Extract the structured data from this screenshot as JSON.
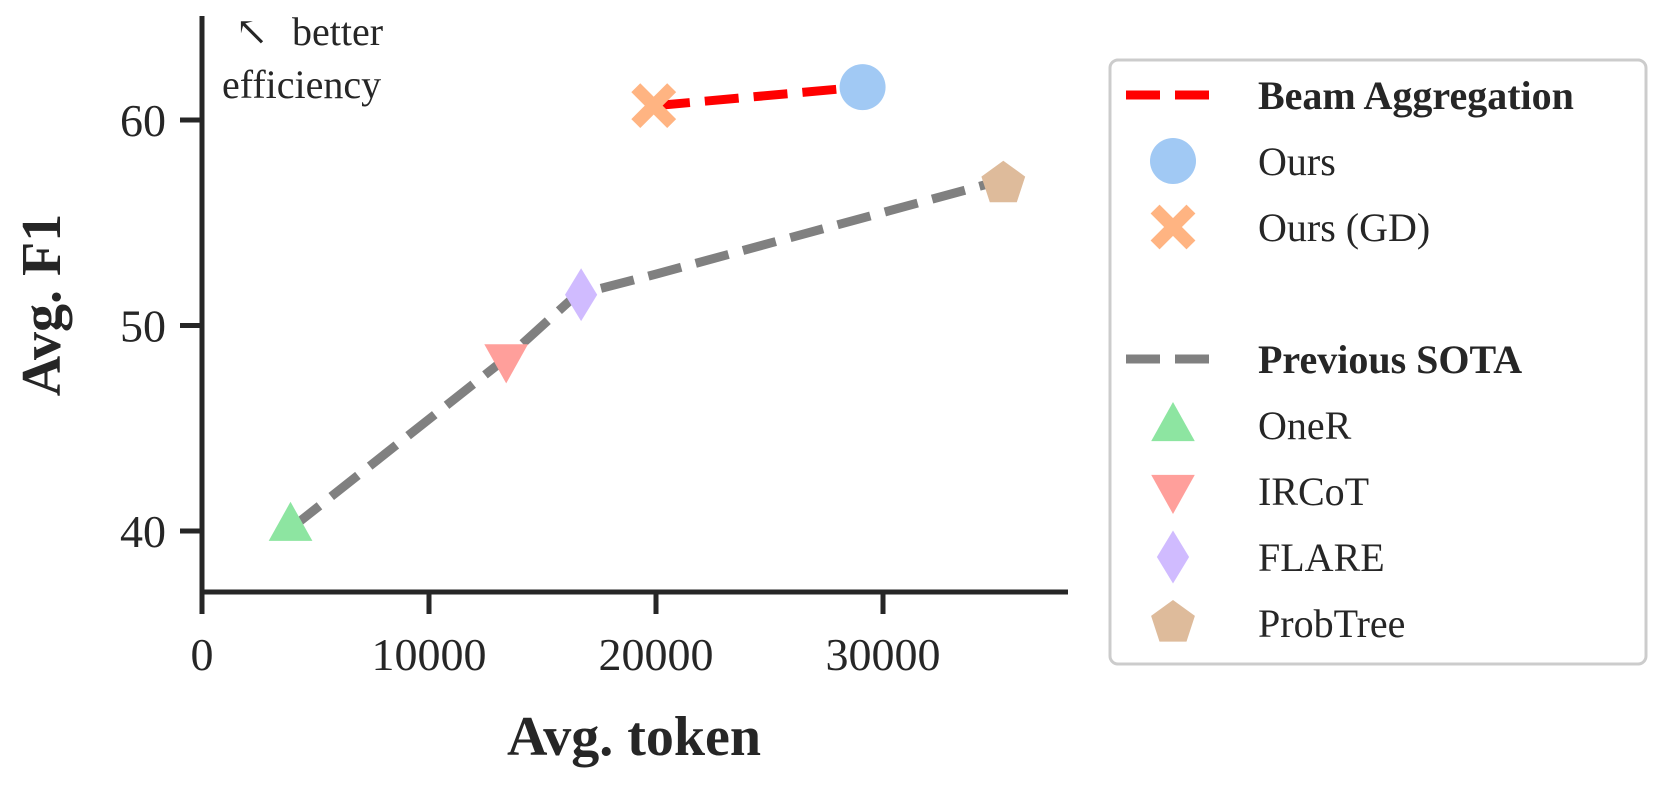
{
  "chart_data": {
    "type": "scatter",
    "title": "",
    "xlabel": "Avg. token",
    "ylabel": "Avg. F1",
    "xlim": [
      0,
      38000
    ],
    "ylim": [
      37,
      65
    ],
    "xticks": [
      0,
      10000,
      20000,
      30000
    ],
    "xtick_labels": [
      "0",
      "10000",
      "20000",
      "30000"
    ],
    "yticks": [
      40,
      50,
      60
    ],
    "ytick_labels": [
      "40",
      "50",
      "60"
    ],
    "grid": false,
    "legend_position": "outside-right",
    "annotation": {
      "arrow": "↖",
      "line1": "better",
      "line2": "efficiency"
    },
    "lines": [
      {
        "name": "Beam Aggregation",
        "color": "#ff0000",
        "style": "dashed",
        "x": [
          20000,
          29000
        ],
        "y": [
          60.7,
          61.6
        ]
      },
      {
        "name": "Previous SOTA",
        "color": "#808080",
        "style": "dashed",
        "x": [
          4000,
          13500,
          16500,
          20000,
          35000
        ],
        "y": [
          40.2,
          48.5,
          51.5,
          52.5,
          57.0
        ]
      }
    ],
    "points": [
      {
        "name": "Ours",
        "marker": "circle",
        "color": "#a1c9f4",
        "x": 29100,
        "y": 61.6
      },
      {
        "name": "Ours (GD)",
        "marker": "x",
        "color": "#ffb482",
        "x": 19900,
        "y": 60.7
      },
      {
        "name": "OneR",
        "marker": "triangle-up",
        "color": "#8de5a1",
        "x": 3900,
        "y": 40.3
      },
      {
        "name": "IRCoT",
        "marker": "triangle-down",
        "color": "#ff9f9b",
        "x": 13400,
        "y": 48.3
      },
      {
        "name": "FLARE",
        "marker": "diamond",
        "color": "#d0bbff",
        "x": 16700,
        "y": 51.5
      },
      {
        "name": "ProbTree",
        "marker": "pentagon",
        "color": "#debb9b",
        "x": 35300,
        "y": 56.9
      }
    ],
    "legend": [
      {
        "kind": "line",
        "label": "Beam Aggregation",
        "color": "#ff0000",
        "bold": true
      },
      {
        "kind": "marker",
        "label": "Ours",
        "marker": "circle",
        "color": "#a1c9f4"
      },
      {
        "kind": "marker",
        "label": "Ours (GD)",
        "marker": "x",
        "color": "#ffb482"
      },
      {
        "kind": "blank",
        "label": ""
      },
      {
        "kind": "line",
        "label": "Previous SOTA",
        "color": "#808080",
        "bold": true
      },
      {
        "kind": "marker",
        "label": "OneR",
        "marker": "triangle-up",
        "color": "#8de5a1"
      },
      {
        "kind": "marker",
        "label": "IRCoT",
        "marker": "triangle-down",
        "color": "#ff9f9b"
      },
      {
        "kind": "marker",
        "label": "FLARE",
        "marker": "diamond",
        "color": "#d0bbff"
      },
      {
        "kind": "marker",
        "label": "ProbTree",
        "marker": "pentagon",
        "color": "#debb9b"
      }
    ]
  }
}
